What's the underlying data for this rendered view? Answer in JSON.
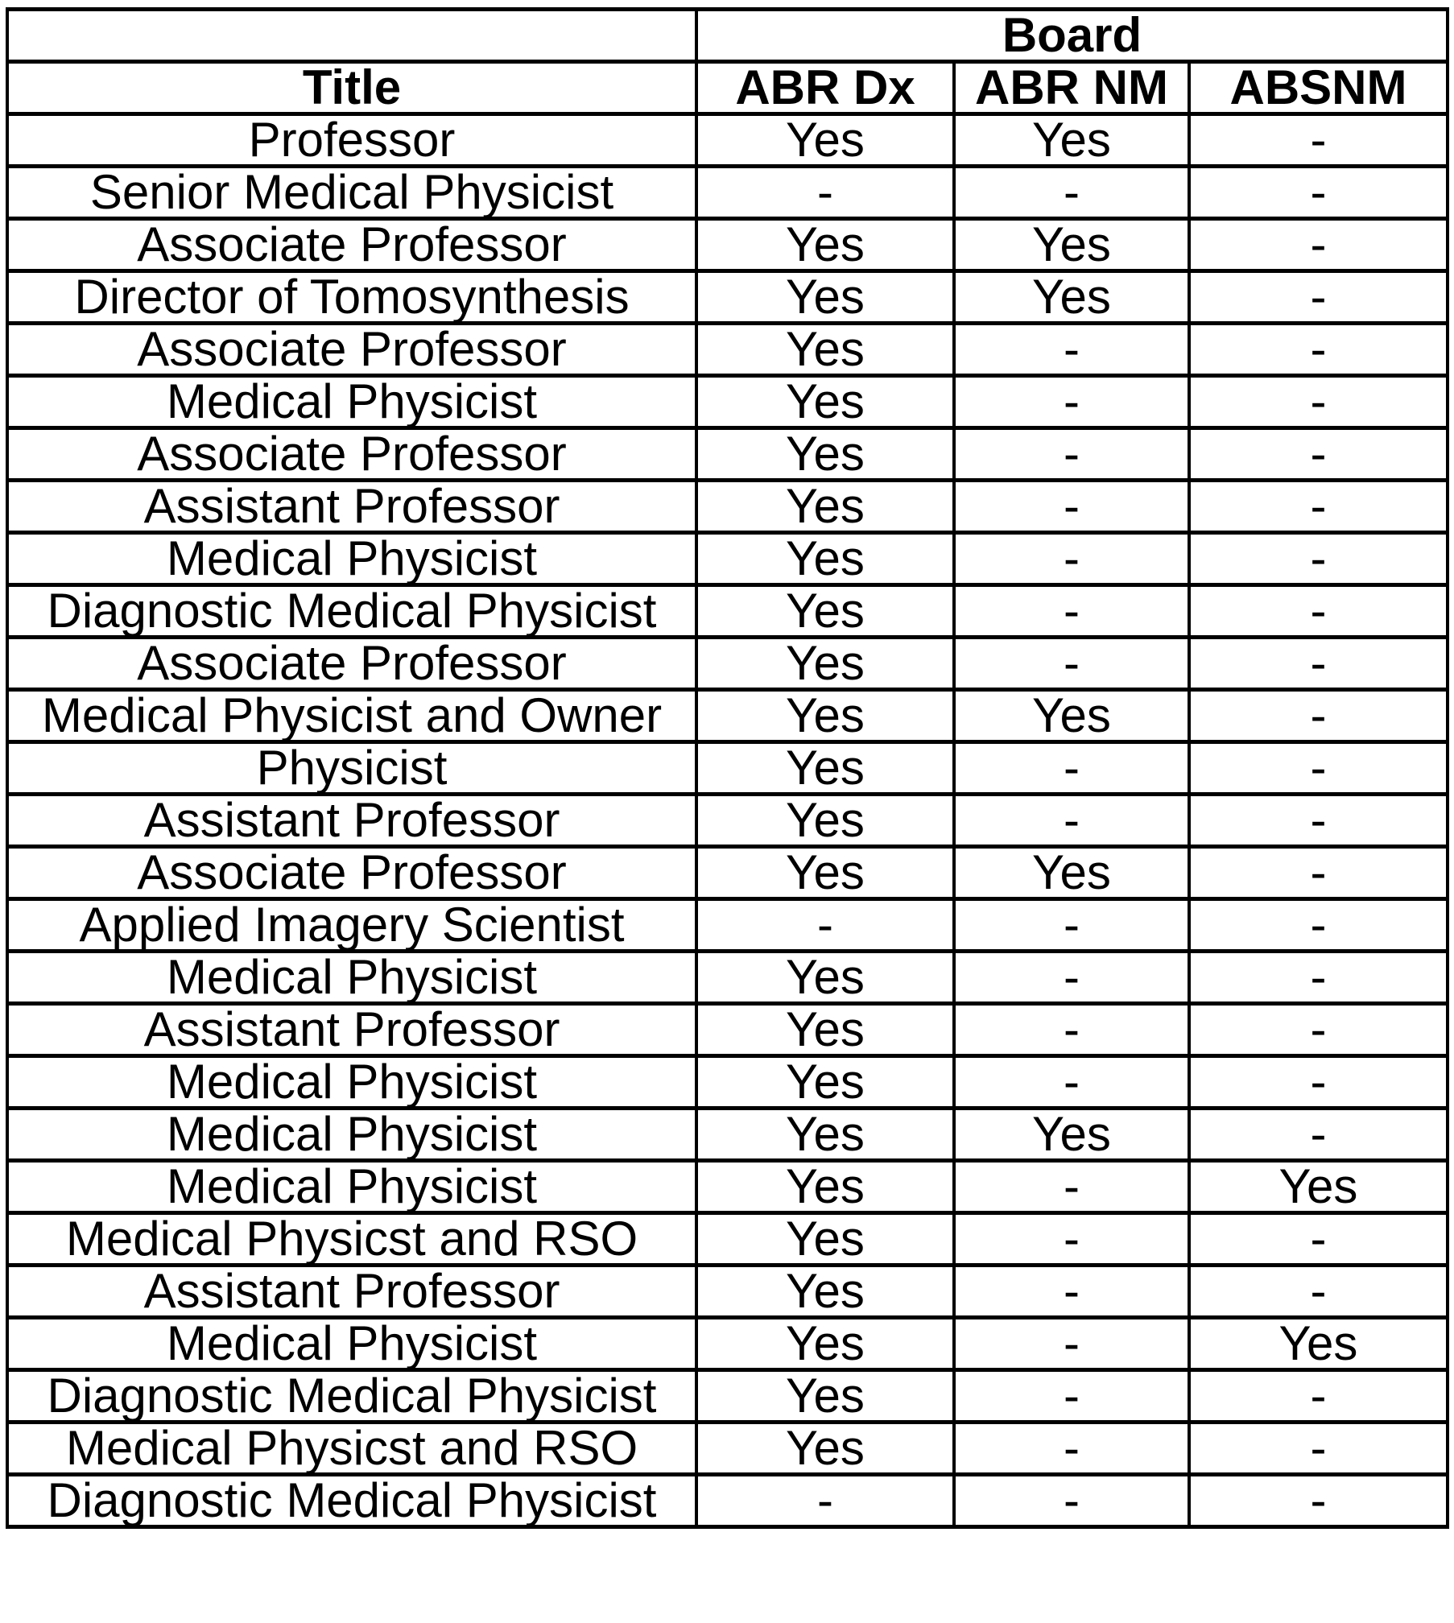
{
  "table": {
    "group_header": "Board",
    "headers": [
      "Title",
      "ABR Dx",
      "ABR NM",
      "ABSNM"
    ],
    "rows": [
      [
        "Professor",
        "Yes",
        "Yes",
        "-"
      ],
      [
        "Senior Medical Physicist",
        "-",
        "-",
        "-"
      ],
      [
        "Associate Professor",
        "Yes",
        "Yes",
        "-"
      ],
      [
        "Director of Tomosynthesis",
        "Yes",
        "Yes",
        "-"
      ],
      [
        "Associate Professor",
        "Yes",
        "-",
        "-"
      ],
      [
        "Medical Physicist",
        "Yes",
        "-",
        "-"
      ],
      [
        "Associate Professor",
        "Yes",
        "-",
        "-"
      ],
      [
        "Assistant Professor",
        "Yes",
        "-",
        "-"
      ],
      [
        "Medical Physicist",
        "Yes",
        "-",
        "-"
      ],
      [
        "Diagnostic Medical Physicist",
        "Yes",
        "-",
        "-"
      ],
      [
        "Associate Professor",
        "Yes",
        "-",
        "-"
      ],
      [
        "Medical Physicist and Owner",
        "Yes",
        "Yes",
        "-"
      ],
      [
        "Physicist",
        "Yes",
        "-",
        "-"
      ],
      [
        "Assistant Professor",
        "Yes",
        "-",
        "-"
      ],
      [
        "Associate Professor",
        "Yes",
        "Yes",
        "-"
      ],
      [
        "Applied Imagery Scientist",
        "-",
        "-",
        "-"
      ],
      [
        "Medical Physicist",
        "Yes",
        "-",
        "-"
      ],
      [
        "Assistant Professor",
        "Yes",
        "-",
        "-"
      ],
      [
        "Medical Physicist",
        "Yes",
        "-",
        "-"
      ],
      [
        "Medical Physicist",
        "Yes",
        "Yes",
        "-"
      ],
      [
        "Medical Physicist",
        "Yes",
        "-",
        "Yes"
      ],
      [
        "Medical Physicst and RSO",
        "Yes",
        "-",
        "-"
      ],
      [
        "Assistant Professor",
        "Yes",
        "-",
        "-"
      ],
      [
        "Medical Physicist",
        "Yes",
        "-",
        "Yes"
      ],
      [
        "Diagnostic Medical Physicist",
        "Yes",
        "-",
        "-"
      ],
      [
        "Medical Physicst and RSO",
        "Yes",
        "-",
        "-"
      ],
      [
        "Diagnostic Medical Physicist",
        "-",
        "-",
        "-"
      ]
    ]
  }
}
